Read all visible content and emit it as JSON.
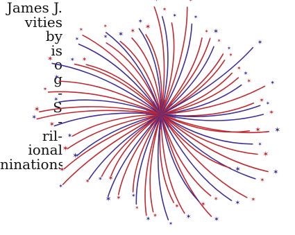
{
  "text_fragments": [
    "James J.",
    "vities",
    "by",
    "is",
    "o",
    "g",
    "-",
    "S",
    "-",
    "ril-",
    "ional",
    "ninations"
  ],
  "colors": {
    "red": "#c1272d",
    "blue": "#3a2f9a",
    "text": "#111111",
    "background": "#ffffff"
  },
  "image": {
    "subject": "fireworks-burst-icon"
  }
}
